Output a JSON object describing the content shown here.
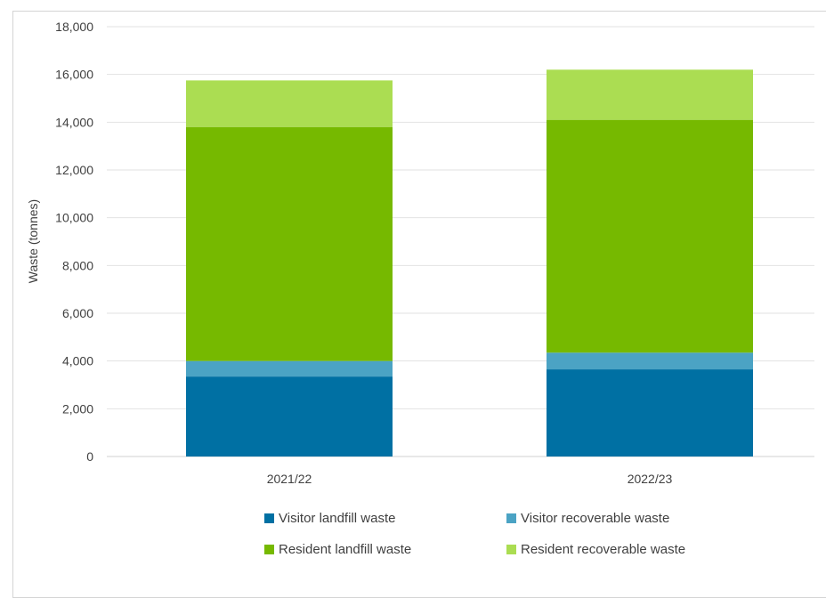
{
  "chart_data": {
    "type": "bar",
    "stacked": true,
    "title": "",
    "xlabel": "",
    "ylabel": "Waste (tonnes)",
    "ylim": [
      0,
      18000
    ],
    "yticks": [
      0,
      2000,
      4000,
      6000,
      8000,
      10000,
      12000,
      14000,
      16000,
      18000
    ],
    "ytick_labels": [
      "0",
      "2,000",
      "4,000",
      "6,000",
      "8,000",
      "10,000",
      "12,000",
      "14,000",
      "16,000",
      "18,000"
    ],
    "grid": "horizontal",
    "legend_position": "bottom",
    "categories": [
      "2021/22",
      "2022/23"
    ],
    "series": [
      {
        "name": "Visitor landfill waste",
        "color": "#0070a3",
        "values": [
          3350,
          3650
        ]
      },
      {
        "name": "Visitor recoverable waste",
        "color": "#4ba3c4",
        "values": [
          650,
          700
        ]
      },
      {
        "name": "Resident landfill waste",
        "color": "#76b900",
        "values": [
          9800,
          9750
        ]
      },
      {
        "name": "Resident recoverable waste",
        "color": "#abdd52",
        "values": [
          1950,
          2100
        ]
      }
    ]
  }
}
